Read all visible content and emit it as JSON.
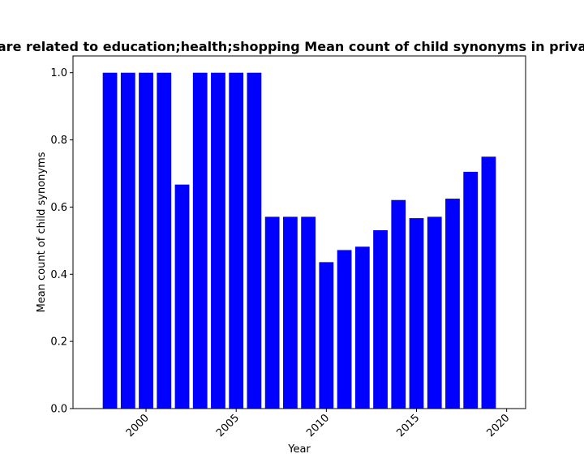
{
  "chart_data": {
    "type": "bar",
    "title": "…are related to education;health;shopping Mean count of child synonyms in priva…",
    "xlabel": "Year",
    "ylabel": "Mean count of child synonyms",
    "x": [
      1998,
      1999,
      2000,
      2001,
      2002,
      2003,
      2004,
      2005,
      2006,
      2007,
      2008,
      2009,
      2010,
      2011,
      2012,
      2013,
      2014,
      2015,
      2016,
      2017,
      2018,
      2019
    ],
    "values": [
      1.0,
      1.0,
      1.0,
      1.0,
      0.667,
      1.0,
      1.0,
      1.0,
      1.0,
      0.571,
      0.571,
      0.571,
      0.436,
      0.472,
      0.482,
      0.531,
      0.621,
      0.567,
      0.571,
      0.625,
      0.705,
      0.75
    ],
    "xlim": [
      1995.95,
      2021.05
    ],
    "ylim": [
      0,
      1.05
    ],
    "xticks": [
      2000,
      2005,
      2010,
      2015,
      2020
    ],
    "yticks": [
      0.0,
      0.2,
      0.4,
      0.6,
      0.8,
      1.0
    ],
    "xtick_labels": [
      "2000",
      "2005",
      "2010",
      "2015",
      "2020"
    ],
    "ytick_labels": [
      "0.0",
      "0.2",
      "0.4",
      "0.6",
      "0.8",
      "1.0"
    ],
    "bar_color": "#0000ff",
    "grid": false,
    "legend": "none"
  }
}
